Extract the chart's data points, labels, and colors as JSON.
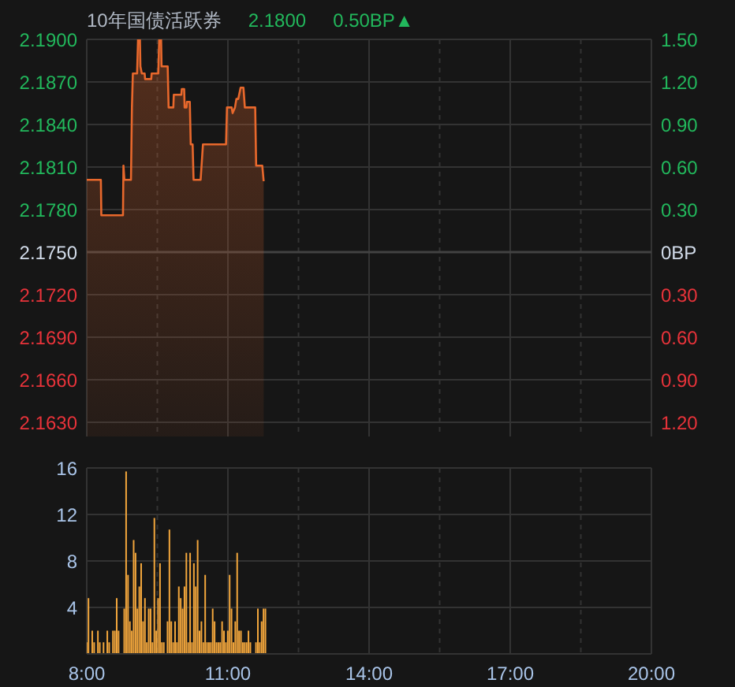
{
  "chart_data": [
    {
      "type": "area",
      "title": "10年国债活跃券",
      "annotations": [
        "2.1800",
        "0.50BP▲"
      ],
      "x": [
        8.0,
        8.3,
        8.31,
        8.77,
        8.78,
        8.8,
        8.94,
        8.96,
        8.98,
        9.07,
        9.09,
        9.13,
        9.14,
        9.17,
        9.23,
        9.24,
        9.37,
        9.38,
        9.52,
        9.54,
        9.58,
        9.59,
        9.72,
        9.74,
        9.84,
        9.85,
        10.01,
        10.02,
        10.07,
        10.08,
        10.12,
        10.13,
        10.19,
        10.21,
        10.25,
        10.27,
        10.42,
        10.47,
        10.96,
        10.98,
        11.08,
        11.1,
        11.15,
        11.18,
        11.22,
        11.27,
        11.33,
        11.36,
        11.58,
        11.6,
        11.73,
        11.76
      ],
      "values": [
        2.1801,
        2.1801,
        2.1776,
        2.1776,
        2.1811,
        2.1801,
        2.1801,
        2.1852,
        2.1876,
        2.1876,
        2.19,
        2.19,
        2.1881,
        2.1876,
        2.1876,
        2.1872,
        2.1872,
        2.1876,
        2.1876,
        2.19,
        2.19,
        2.1881,
        2.1881,
        2.1852,
        2.1852,
        2.1861,
        2.1861,
        2.1865,
        2.1865,
        2.1852,
        2.1852,
        2.1856,
        2.1856,
        2.1826,
        2.1826,
        2.1801,
        2.1801,
        2.1826,
        2.1826,
        2.1852,
        2.1852,
        2.1848,
        2.1852,
        2.1858,
        2.1858,
        2.1866,
        2.1866,
        2.1852,
        2.1852,
        2.1811,
        2.1811,
        2.18
      ],
      "color": "#e8682c",
      "xlim": [
        8,
        20
      ],
      "xticks": [
        8,
        {
          "value": 9.5,
          "label": null
        },
        11,
        {
          "value": 12.5,
          "label": null
        },
        14,
        {
          "value": 15.5,
          "label": null
        },
        17,
        {
          "value": 18.5,
          "label": null
        },
        20
      ],
      "ylim": [
        2.162,
        2.19
      ],
      "yticks": [
        {
          "value": 2.19,
          "label": "2.1900"
        },
        {
          "value": 2.187,
          "label": "2.1870"
        },
        {
          "value": 2.184,
          "label": "2.1840"
        },
        {
          "value": 2.181,
          "label": "2.1810"
        },
        {
          "value": 2.178,
          "label": "2.1780"
        },
        {
          "value": 2.175,
          "label": "2.1750"
        },
        {
          "value": 2.172,
          "label": "2.1720"
        },
        {
          "value": 2.169,
          "label": "2.1690"
        },
        {
          "value": 2.166,
          "label": "2.1660"
        },
        {
          "value": 2.163,
          "label": "2.1630"
        }
      ],
      "y2lim": [
        -1.3,
        1.5
      ],
      "y2ticks": [
        {
          "value": 1.5,
          "label": "1.50"
        },
        {
          "value": 1.2,
          "label": "1.20"
        },
        {
          "value": 0.9,
          "label": "0.90"
        },
        {
          "value": 0.6,
          "label": "0.60"
        },
        {
          "value": 0.3,
          "label": "0.30"
        },
        {
          "value": 0,
          "label": "0BP"
        },
        {
          "value": -0.3,
          "label": "0.30"
        },
        {
          "value": -0.6,
          "label": "0.60"
        },
        {
          "value": -0.9,
          "label": "0.90"
        },
        {
          "value": -1.2,
          "label": "1.20"
        }
      ],
      "grid": true,
      "tick_labels": "y"
    },
    {
      "type": "bar",
      "x": [
        8.0,
        8.04,
        8.12,
        8.16,
        8.24,
        8.28,
        8.36,
        8.44,
        8.48,
        8.56,
        8.6,
        8.64,
        8.68,
        8.8,
        8.84,
        8.88,
        8.92,
        8.96,
        9.0,
        9.04,
        9.08,
        9.12,
        9.16,
        9.2,
        9.24,
        9.28,
        9.32,
        9.36,
        9.4,
        9.44,
        9.48,
        9.52,
        9.56,
        9.6,
        9.64,
        9.72,
        9.76,
        9.8,
        9.84,
        9.88,
        9.92,
        9.96,
        10.0,
        10.04,
        10.08,
        10.12,
        10.16,
        10.2,
        10.24,
        10.28,
        10.32,
        10.36,
        10.4,
        10.44,
        10.48,
        10.52,
        10.56,
        10.6,
        10.64,
        10.68,
        10.72,
        10.76,
        10.8,
        10.84,
        10.88,
        10.92,
        10.96,
        11.0,
        11.04,
        11.08,
        11.12,
        11.16,
        11.2,
        11.24,
        11.28,
        11.32,
        11.36,
        11.4,
        11.44,
        11.48,
        11.6,
        11.64,
        11.68,
        11.72,
        11.76,
        11.8
      ],
      "values": [
        1,
        4.8,
        2,
        1,
        2,
        1,
        1,
        2,
        1,
        2,
        2,
        4.8,
        2,
        3.9,
        15.7,
        6.8,
        2.8,
        2,
        9.8,
        8.7,
        3.9,
        5.8,
        7.8,
        2.8,
        4.8,
        1,
        3.9,
        3.9,
        1,
        11.7,
        2,
        4.8,
        7.8,
        1,
        1,
        2.8,
        10.7,
        2.8,
        1,
        2.8,
        1,
        5.8,
        4.8,
        3.9,
        5.8,
        8.7,
        1,
        8.7,
        1,
        7.8,
        5.8,
        9.8,
        2,
        2.8,
        1,
        6.8,
        1,
        1,
        1,
        3.9,
        2.8,
        1,
        1,
        1,
        2.8,
        2,
        1,
        2,
        6.8,
        3.9,
        1,
        2.8,
        8.7,
        2,
        2,
        1,
        1,
        1,
        2,
        1,
        1,
        3.9,
        1,
        2.8,
        3.9,
        3.9
      ],
      "color": "#f2a63c",
      "xlim": [
        8,
        20
      ],
      "xticks": [
        {
          "value": 8,
          "label": "8:00"
        },
        {
          "value": 9.5,
          "label": null
        },
        {
          "value": 11,
          "label": "11:00"
        },
        {
          "value": 12.5,
          "label": null
        },
        {
          "value": 14,
          "label": "14:00"
        },
        {
          "value": 15.5,
          "label": null
        },
        {
          "value": 17,
          "label": "17:00"
        },
        {
          "value": 18.5,
          "label": null
        },
        {
          "value": 20,
          "label": "20:00"
        }
      ],
      "ylim": [
        0,
        16
      ],
      "yticks": [
        4,
        8,
        12,
        16
      ],
      "grid": true
    }
  ]
}
